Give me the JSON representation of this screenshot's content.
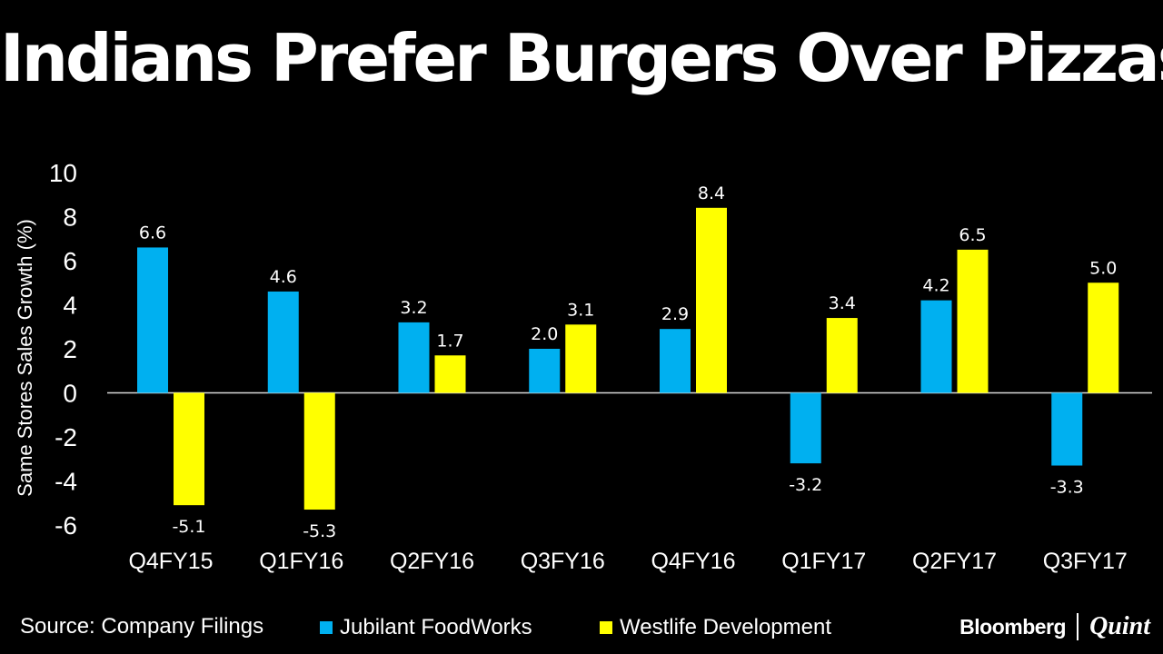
{
  "title": "Indians Prefer Burgers Over Pizzas",
  "footer": {
    "source": "Source: Company Filings",
    "brand_primary": "Bloomberg",
    "brand_secondary": "Quint"
  },
  "colors": {
    "background": "#000000",
    "jubilant": "#00b0f0",
    "westlife": "#ffff00",
    "text": "#ffffff"
  },
  "chart_data": {
    "type": "bar",
    "title": "Indians Prefer Burgers Over Pizzas",
    "xlabel": "",
    "ylabel": "Same Stores Sales Growth (%)",
    "ylim": [
      -6,
      10
    ],
    "yticks": [
      10,
      8,
      6,
      4,
      2,
      0,
      -2,
      -4,
      -6
    ],
    "ytick_labels": [
      "10",
      "8",
      "6",
      "4",
      "2",
      "0",
      "-2",
      "-4",
      "-6"
    ],
    "grid": false,
    "legend_position": "bottom",
    "categories": [
      "Q4FY15",
      "Q1FY16",
      "Q2FY16",
      "Q3FY16",
      "Q4FY16",
      "Q1FY17",
      "Q2FY17",
      "Q3FY17"
    ],
    "series": [
      {
        "name": "Jubilant FoodWorks",
        "color": "#00b0f0",
        "values": [
          6.6,
          4.6,
          3.2,
          2.0,
          2.9,
          -3.2,
          4.2,
          -3.3
        ],
        "labels": [
          "6.6",
          "4.6",
          "3.2",
          "2.0",
          "2.9",
          "-3.2",
          "4.2",
          "-3.3"
        ]
      },
      {
        "name": "Westlife Development",
        "color": "#ffff00",
        "values": [
          -5.1,
          -5.3,
          1.7,
          3.1,
          8.4,
          3.4,
          6.5,
          5.0
        ],
        "labels": [
          "-5.1",
          "-5.3",
          "1.7",
          "3.1",
          "8.4",
          "3.4",
          "6.5",
          "5.0"
        ]
      }
    ]
  }
}
